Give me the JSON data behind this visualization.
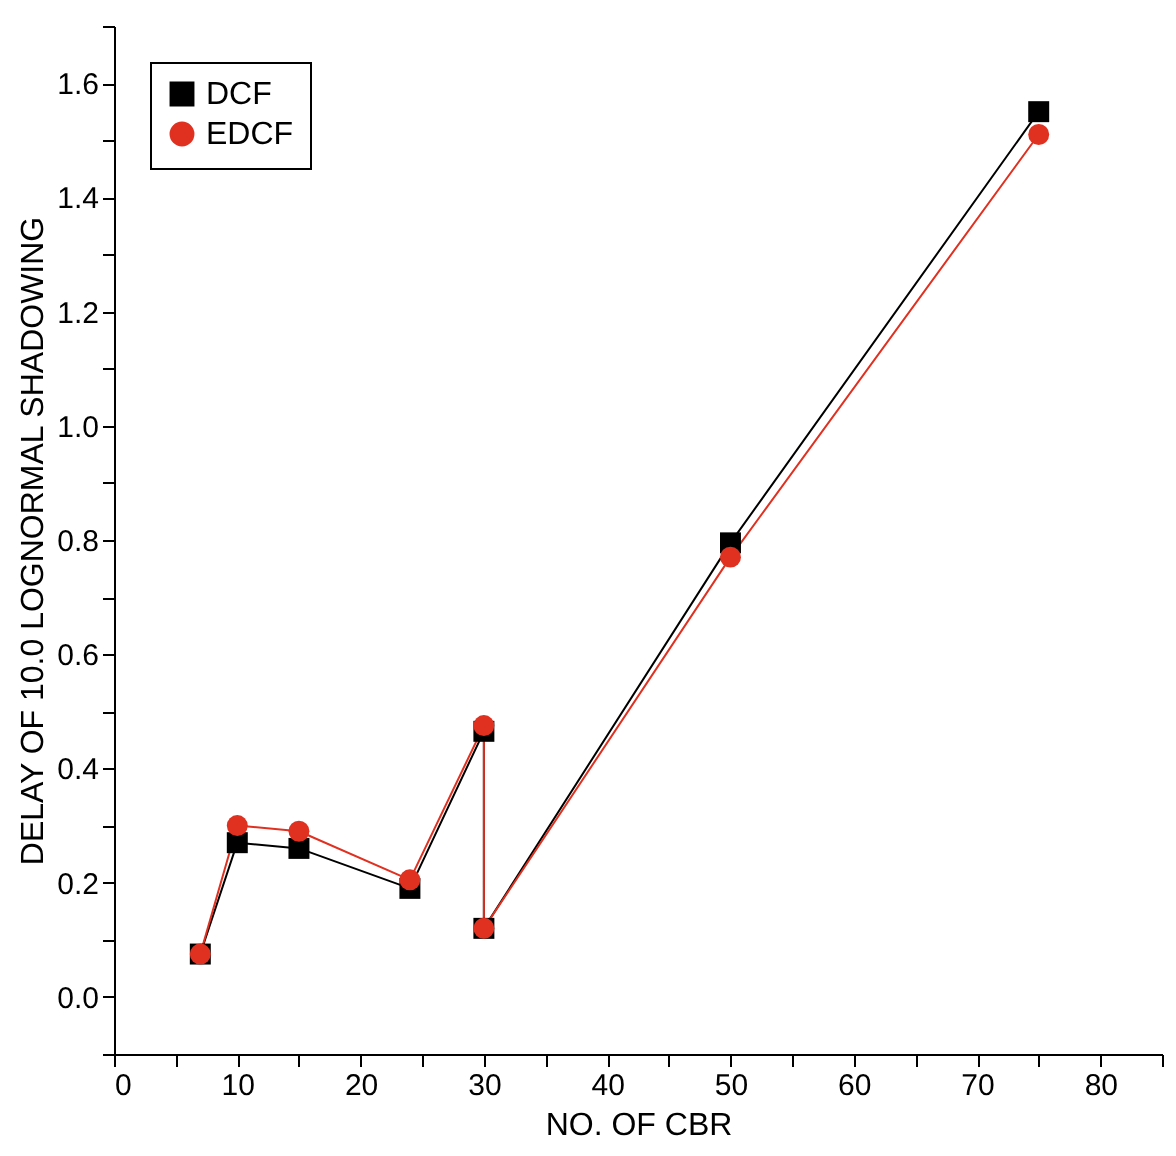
{
  "chart_data": {
    "type": "line",
    "xlabel": "NO. OF CBR",
    "ylabel": "DELAY OF 10.0 LOGNORMAL SHADOWING",
    "x": [
      7,
      10,
      15,
      24,
      30,
      30,
      50,
      75
    ],
    "series": [
      {
        "name": "DCF",
        "color": "#000000",
        "marker": "square",
        "values": [
          0.075,
          0.27,
          0.26,
          0.19,
          0.465,
          0.12,
          0.795,
          1.55
        ]
      },
      {
        "name": "EDCF",
        "color": "#e03020",
        "marker": "circle",
        "values": [
          0.075,
          0.3,
          0.29,
          0.205,
          0.475,
          0.12,
          0.77,
          1.51
        ]
      }
    ],
    "xlim": [
      0,
      85
    ],
    "xticks": [
      0,
      {
        "value": 5,
        "label": null
      },
      10,
      {
        "value": 15,
        "label": null
      },
      20,
      {
        "value": 25,
        "label": null
      },
      30,
      {
        "value": 35,
        "label": null
      },
      40,
      {
        "value": 45,
        "label": null
      },
      50,
      {
        "value": 55,
        "label": null
      },
      60,
      {
        "value": 65,
        "label": null
      },
      70,
      {
        "value": 75,
        "label": null
      },
      80,
      {
        "value": 85,
        "label": null
      }
    ],
    "ylim": [
      -0.1,
      1.7
    ],
    "yticks": [
      {
        "value": -0.1,
        "label": null
      },
      {
        "value": 0,
        "label": "0.0"
      },
      {
        "value": 0.1,
        "label": null
      },
      0.2,
      {
        "value": 0.3,
        "label": null
      },
      0.4,
      {
        "value": 0.5,
        "label": null
      },
      0.6,
      {
        "value": 0.7,
        "label": null
      },
      0.8,
      {
        "value": 0.9,
        "label": null
      },
      {
        "value": 1.0,
        "label": "1.0"
      },
      {
        "value": 1.1,
        "label": null
      },
      1.2,
      {
        "value": 1.3,
        "label": null
      },
      1.4,
      {
        "value": 1.5,
        "label": null
      },
      1.6,
      {
        "value": 1.7,
        "label": null
      }
    ],
    "grid": false,
    "legend": "top left",
    "line_style": "solid"
  }
}
